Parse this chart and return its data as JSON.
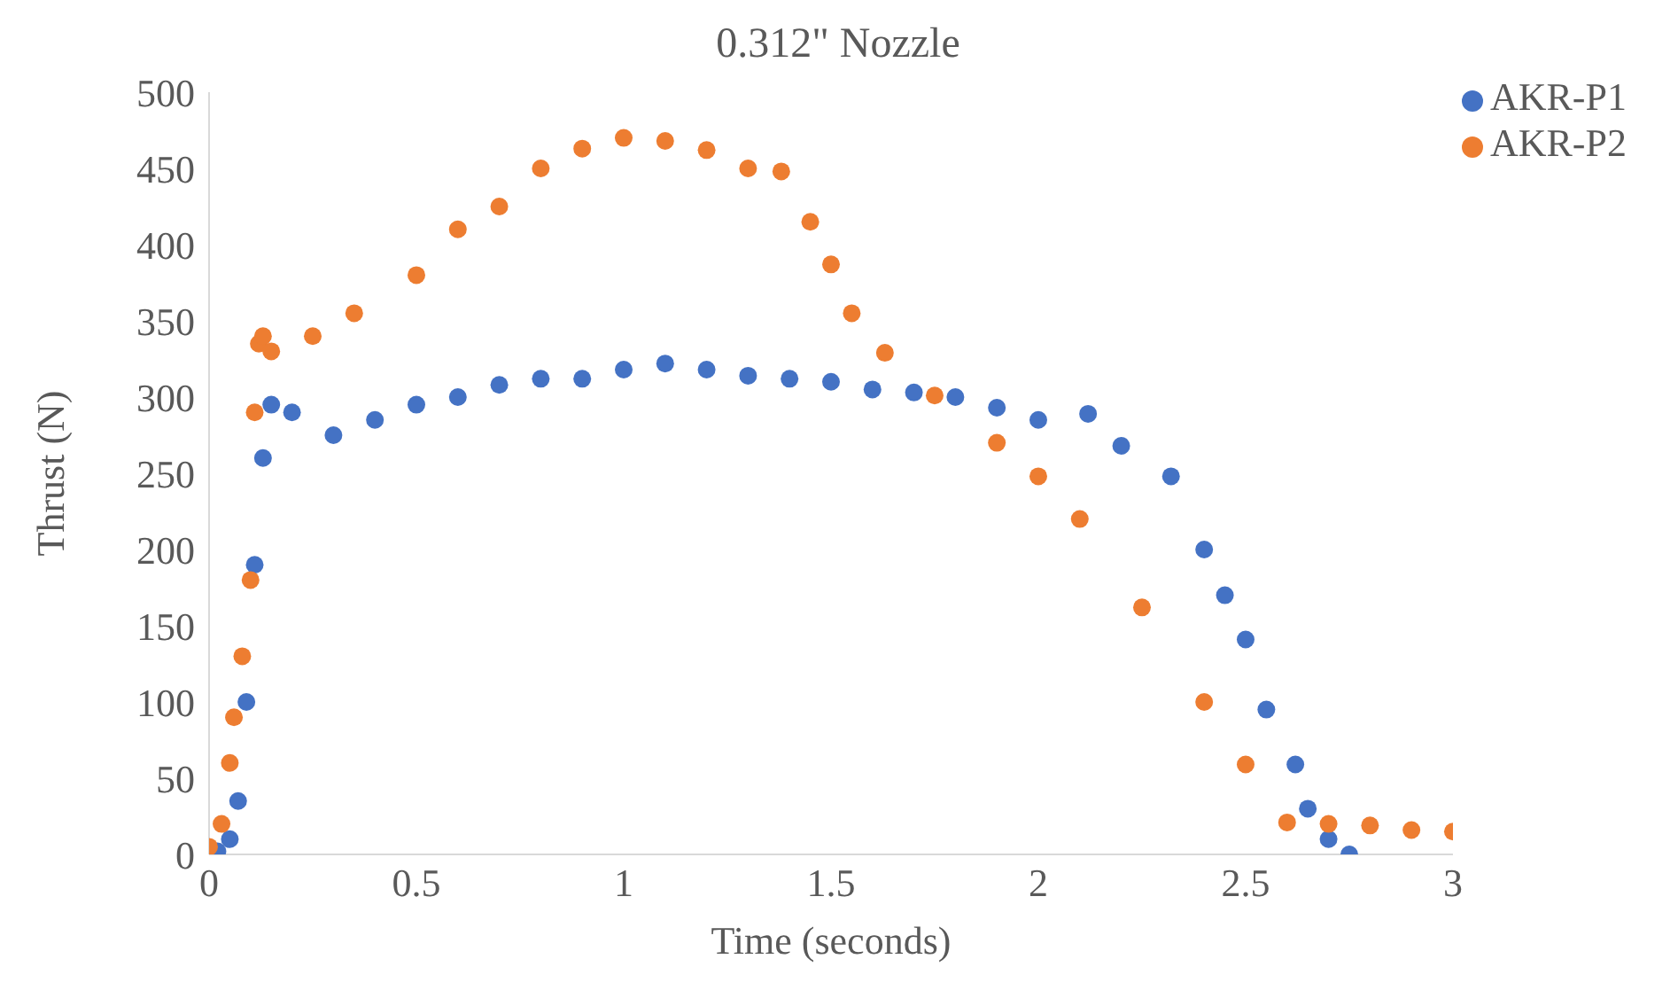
{
  "chart_data": {
    "type": "scatter",
    "title": "0.312\" Nozzle",
    "xlabel": "Time (seconds)",
    "ylabel": "Thrust (N)",
    "xlim": [
      0,
      3
    ],
    "xticks": [
      0,
      0.5,
      1,
      1.5,
      2,
      2.5,
      3
    ],
    "ylim": [
      0,
      500
    ],
    "yticks": [
      0,
      50,
      100,
      150,
      200,
      250,
      300,
      350,
      400,
      450,
      500
    ],
    "grid": false,
    "legend": "top right",
    "marker": "circle",
    "series": [
      {
        "name": "AKR-P1",
        "color": "#4472c4",
        "x": [
          0.02,
          0.05,
          0.07,
          0.09,
          0.11,
          0.13,
          0.15,
          0.2,
          0.3,
          0.4,
          0.5,
          0.6,
          0.7,
          0.8,
          0.9,
          1.0,
          1.1,
          1.2,
          1.3,
          1.4,
          1.5,
          1.6,
          1.7,
          1.8,
          1.9,
          2.0,
          2.12,
          2.2,
          2.32,
          2.4,
          2.45,
          2.5,
          2.55,
          2.62,
          2.65,
          2.7,
          2.75
        ],
        "values": [
          2,
          10,
          35,
          100,
          190,
          260,
          295,
          290,
          275,
          285,
          295,
          300,
          308,
          312,
          312,
          318,
          322,
          318,
          314,
          312,
          310,
          305,
          303,
          300,
          293,
          285,
          289,
          268,
          248,
          200,
          170,
          141,
          95,
          59,
          30,
          10,
          0
        ]
      },
      {
        "name": "AKR-P2",
        "color": "#ed7d31",
        "x": [
          0,
          0.03,
          0.05,
          0.06,
          0.08,
          0.1,
          0.11,
          0.12,
          0.13,
          0.15,
          0.25,
          0.35,
          0.5,
          0.6,
          0.7,
          0.8,
          0.9,
          1.0,
          1.1,
          1.2,
          1.3,
          1.38,
          1.45,
          1.5,
          1.55,
          1.63,
          1.75,
          1.9,
          2.0,
          2.1,
          2.25,
          2.4,
          2.5,
          2.6,
          2.7,
          2.8,
          2.9,
          3.0
        ],
        "values": [
          5,
          20,
          60,
          90,
          130,
          180,
          290,
          335,
          340,
          330,
          340,
          355,
          380,
          410,
          425,
          450,
          463,
          470,
          468,
          462,
          450,
          448,
          415,
          387,
          355,
          329,
          301,
          270,
          248,
          220,
          162,
          100,
          59,
          21,
          20,
          19,
          16,
          15
        ]
      }
    ]
  }
}
